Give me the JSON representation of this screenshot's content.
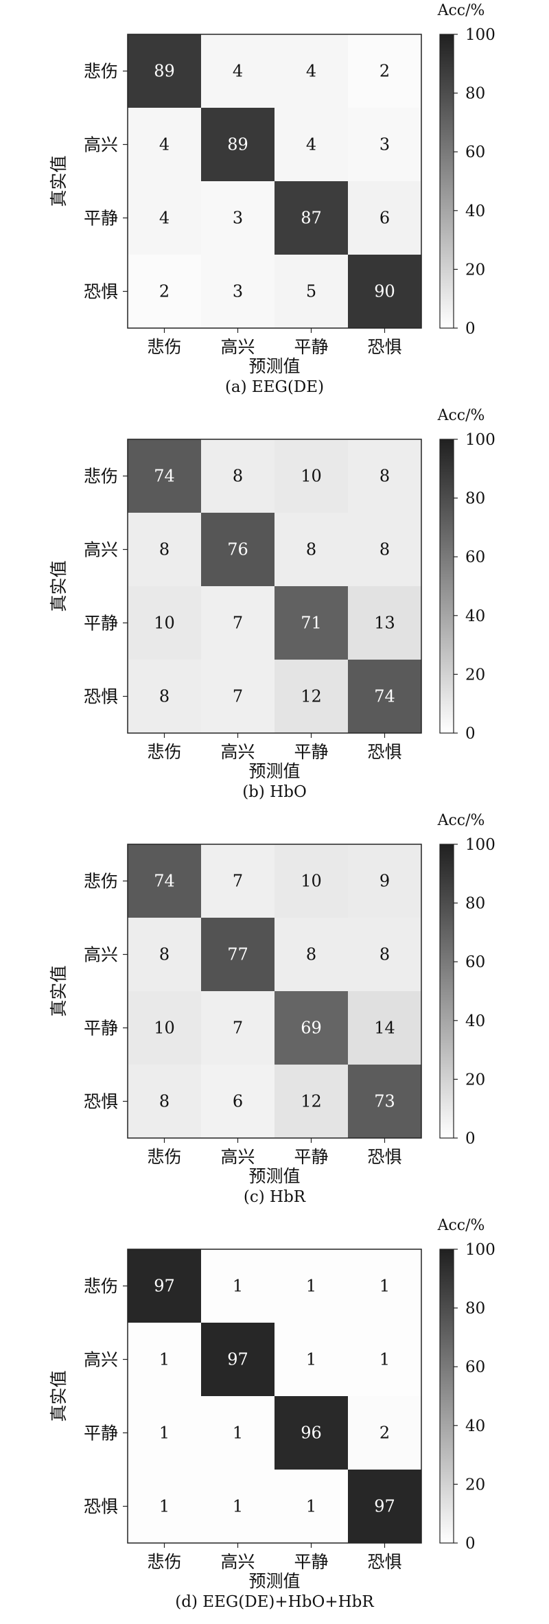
{
  "chart_data": [
    {
      "type": "heatmap",
      "caption": "(a) EEG(DE)",
      "xlabel": "预测值",
      "ylabel": "真实值",
      "x_categories": [
        "悲伤",
        "高兴",
        "平静",
        "恐惧"
      ],
      "y_categories": [
        "悲伤",
        "高兴",
        "平静",
        "恐惧"
      ],
      "values": [
        [
          89,
          4,
          4,
          2
        ],
        [
          4,
          89,
          4,
          3
        ],
        [
          4,
          3,
          87,
          6
        ],
        [
          2,
          3,
          5,
          90
        ]
      ],
      "colorbar": {
        "title": "Acc/%",
        "min": 0,
        "max": 100,
        "ticks": [
          0,
          20,
          40,
          60,
          80,
          100
        ]
      },
      "colormap": "greys"
    },
    {
      "type": "heatmap",
      "caption": "(b) HbO",
      "xlabel": "预测值",
      "ylabel": "真实值",
      "x_categories": [
        "悲伤",
        "高兴",
        "平静",
        "恐惧"
      ],
      "y_categories": [
        "悲伤",
        "高兴",
        "平静",
        "恐惧"
      ],
      "values": [
        [
          74,
          8,
          10,
          8
        ],
        [
          8,
          76,
          8,
          8
        ],
        [
          10,
          7,
          71,
          13
        ],
        [
          8,
          7,
          12,
          74
        ]
      ],
      "colorbar": {
        "title": "Acc/%",
        "min": 0,
        "max": 100,
        "ticks": [
          0,
          20,
          40,
          60,
          80,
          100
        ]
      },
      "colormap": "greys"
    },
    {
      "type": "heatmap",
      "caption": "(c) HbR",
      "xlabel": "预测值",
      "ylabel": "真实值",
      "x_categories": [
        "悲伤",
        "高兴",
        "平静",
        "恐惧"
      ],
      "y_categories": [
        "悲伤",
        "高兴",
        "平静",
        "恐惧"
      ],
      "values": [
        [
          74,
          7,
          10,
          9
        ],
        [
          8,
          77,
          8,
          8
        ],
        [
          10,
          7,
          69,
          14
        ],
        [
          8,
          6,
          12,
          73
        ]
      ],
      "colorbar": {
        "title": "Acc/%",
        "min": 0,
        "max": 100,
        "ticks": [
          0,
          20,
          40,
          60,
          80,
          100
        ]
      },
      "colormap": "greys"
    },
    {
      "type": "heatmap",
      "caption": "(d) EEG(DE)+HbO+HbR",
      "xlabel": "预测值",
      "ylabel": "真实值",
      "x_categories": [
        "悲伤",
        "高兴",
        "平静",
        "恐惧"
      ],
      "y_categories": [
        "悲伤",
        "高兴",
        "平静",
        "恐惧"
      ],
      "values": [
        [
          97,
          1,
          1,
          1
        ],
        [
          1,
          97,
          1,
          1
        ],
        [
          1,
          1,
          96,
          2
        ],
        [
          1,
          1,
          1,
          97
        ]
      ],
      "colorbar": {
        "title": "Acc/%",
        "min": 0,
        "max": 100,
        "ticks": [
          0,
          20,
          40,
          60,
          80,
          100
        ]
      },
      "colormap": "greys"
    }
  ]
}
